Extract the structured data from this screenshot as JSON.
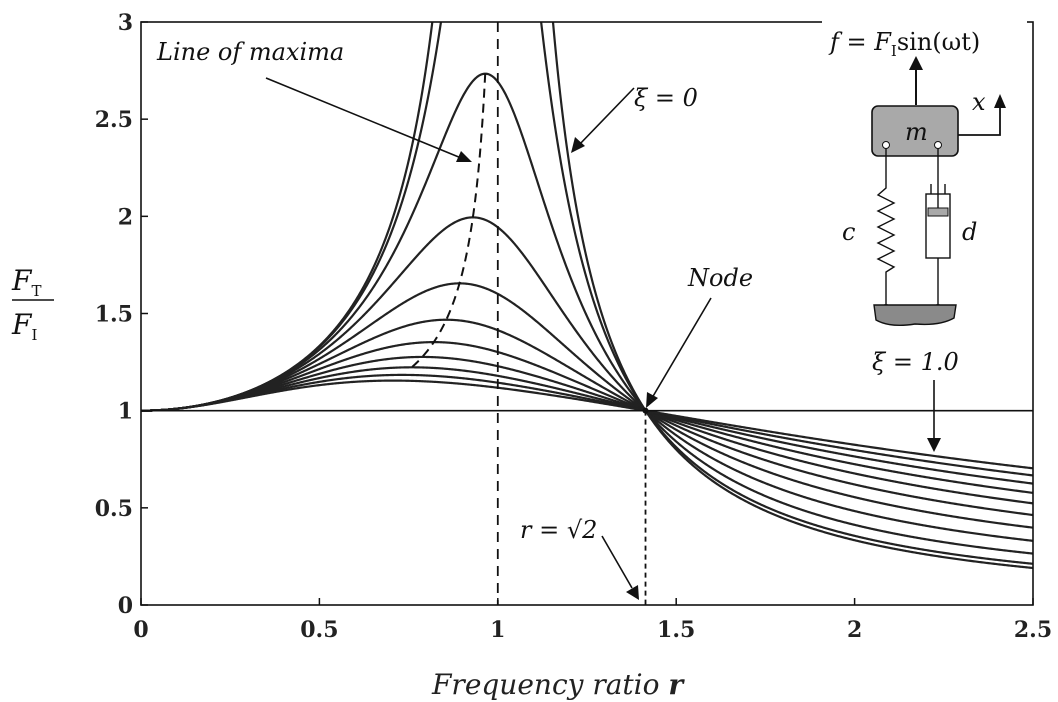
{
  "chart_data": {
    "type": "line",
    "xlabel_text": "Frequency ratio ",
    "xlabel_bold": "r",
    "ylabel": {
      "num_main": "F",
      "num_sub": "T",
      "den_main": "F",
      "den_sub": "I"
    },
    "xlim": [
      0,
      2.5
    ],
    "ylim": [
      0,
      3
    ],
    "xticks": [
      "0",
      "0.5",
      "1",
      "1.5",
      "2",
      "2.5"
    ],
    "yticks": [
      "0",
      "0.5",
      "1",
      "1.5",
      "2",
      "2.5",
      "3"
    ],
    "grid": false,
    "damping_ratios": [
      0,
      0.1,
      0.2,
      0.3,
      0.4,
      0.5,
      0.6,
      0.7,
      0.8,
      0.9,
      1.0
    ],
    "peak_values": {
      "0.2": 2.73,
      "0.3": 2.0,
      "0.4": 1.66,
      "0.5": 1.48
    },
    "node": {
      "x": 1.414,
      "y": 1.0
    },
    "reference_lines": [
      {
        "orientation": "horizontal",
        "value": 1,
        "style": "solid"
      },
      {
        "orientation": "vertical",
        "value": 1,
        "style": "dashed"
      },
      {
        "orientation": "vertical",
        "value": 1.414,
        "style": "dotted"
      }
    ],
    "annotations": {
      "line_of_maxima": "Line of maxima",
      "xi_zero": "ξ = 0",
      "node": "Node",
      "r_eq": "r = √2",
      "xi_one": "ξ = 1.0"
    },
    "inset": {
      "force": "f = F",
      "force_sub": "I",
      "force_tail": "sin(ωt)",
      "mass": "m",
      "disp": "x",
      "spring": "c",
      "damper": "d"
    }
  }
}
